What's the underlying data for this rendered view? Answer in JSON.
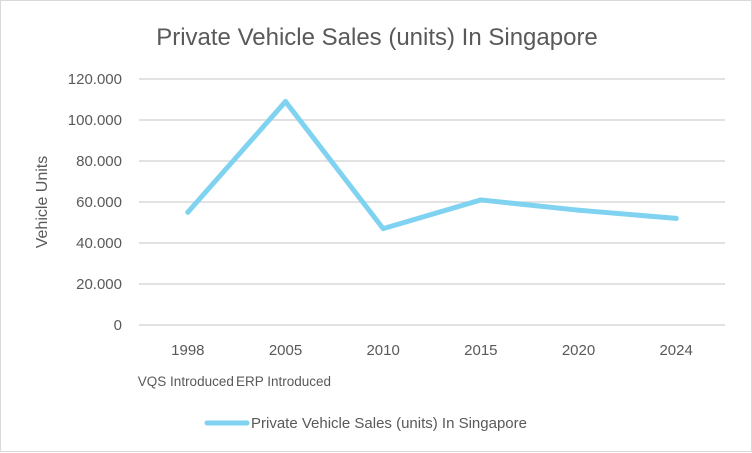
{
  "chart_data": {
    "type": "line",
    "title": "Private Vehicle Sales (units) In Singapore",
    "xlabel": "",
    "ylabel": "Vehicle Units",
    "categories": [
      "1998",
      "2005",
      "2010",
      "2015",
      "2020",
      "2024"
    ],
    "category_notes": [
      "VQS Introduced",
      "ERP Introduced",
      "",
      "",
      "",
      ""
    ],
    "series": [
      {
        "name": "Private Vehicle Sales (units) In Singapore",
        "values": [
          55000,
          109000,
          47000,
          61000,
          56000,
          52000
        ],
        "color": "#7fd3f0"
      }
    ],
    "ylim": [
      0,
      120000
    ],
    "yticks": [
      0,
      20000,
      40000,
      60000,
      80000,
      100000,
      120000
    ],
    "ytick_labels": [
      "0",
      "20.000",
      "40.000",
      "60.000",
      "80.000",
      "100.000",
      "120.000"
    ],
    "grid": true,
    "legend_position": "bottom"
  }
}
